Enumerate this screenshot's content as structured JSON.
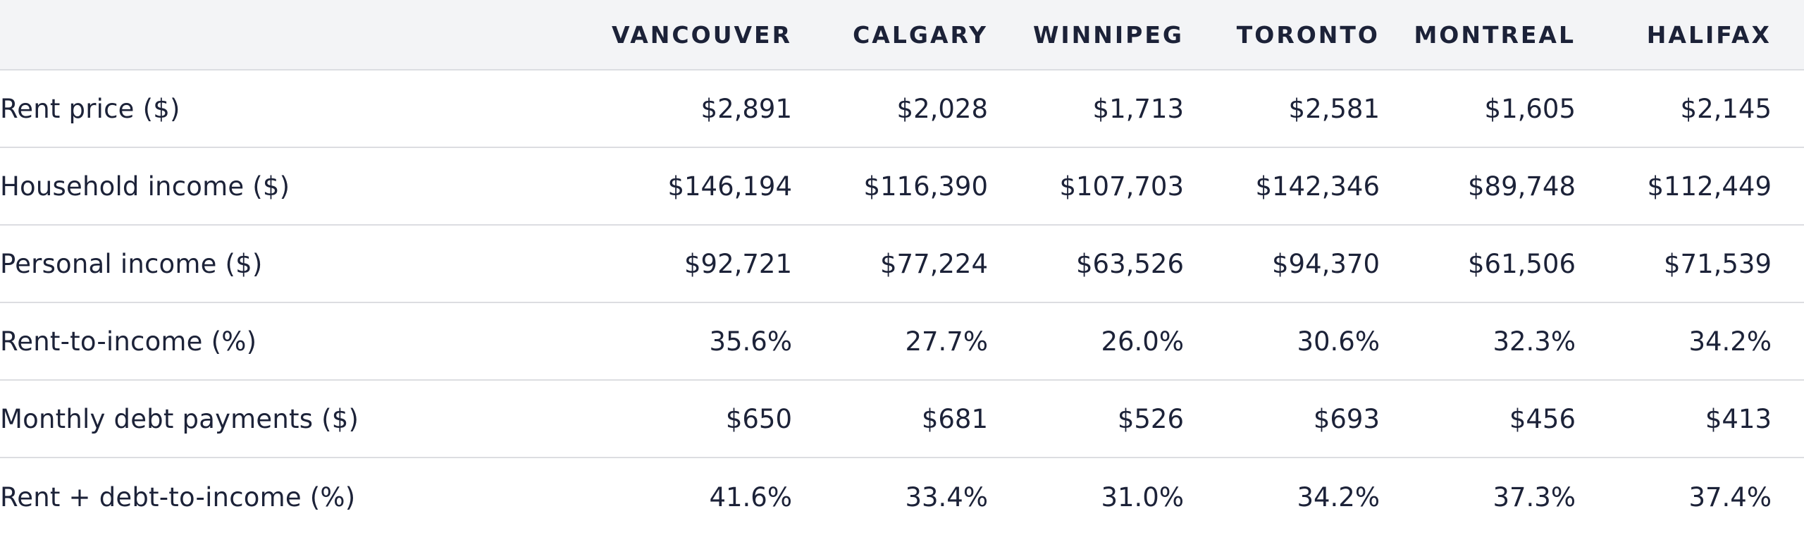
{
  "chart_data": {
    "type": "table",
    "columns": [
      "VANCOUVER",
      "CALGARY",
      "WINNIPEG",
      "TORONTO",
      "MONTREAL",
      "HALIFAX"
    ],
    "rows": [
      {
        "label": "Rent price ($)",
        "values": [
          "$2,891",
          "$2,028",
          "$1,713",
          "$2,581",
          "$1,605",
          "$2,145"
        ]
      },
      {
        "label": "Household income ($)",
        "values": [
          "$146,194",
          "$116,390",
          "$107,703",
          "$142,346",
          "$89,748",
          "$112,449"
        ]
      },
      {
        "label": "Personal income ($)",
        "values": [
          "$92,721",
          "$77,224",
          "$63,526",
          "$94,370",
          "$61,506",
          "$71,539"
        ]
      },
      {
        "label": "Rent-to-income (%)",
        "values": [
          "35.6%",
          "27.7%",
          "26.0%",
          "30.6%",
          "32.3%",
          "34.2%"
        ]
      },
      {
        "label": "Monthly debt payments ($)",
        "values": [
          "$650",
          "$681",
          "$526",
          "$693",
          "$456",
          "$413"
        ]
      },
      {
        "label": "Rent + debt-to-income (%)",
        "values": [
          "41.6%",
          "33.4%",
          "31.0%",
          "34.2%",
          "37.3%",
          "37.4%"
        ]
      }
    ]
  }
}
